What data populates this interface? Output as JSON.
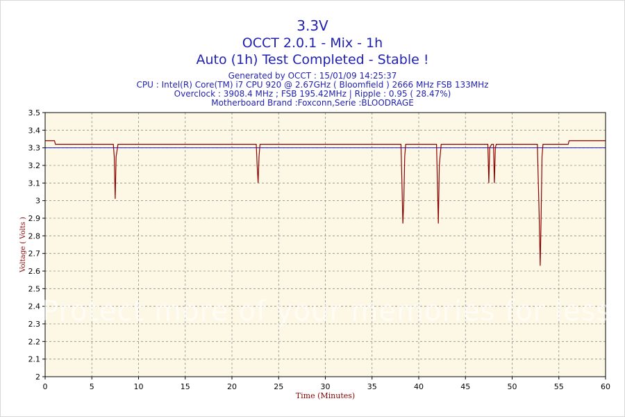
{
  "header": {
    "title": "3.3V",
    "subtitle": "OCCT 2.0.1 - Mix - 1h",
    "status": "Auto (1h) Test Completed - Stable !"
  },
  "info": {
    "generated": "Generated by OCCT : 15/01/09 14:25:37",
    "cpu": "CPU : Intel(R) Core(TM) i7 CPU 920 @ 2.67GHz ( Bloomfield ) 2666 MHz FSB 133MHz",
    "overclock": "Overclock : 3908.4 MHz ; FSB 195.42MHz | Ripple : 0.95 ( 28.47%)",
    "motherboard": "Motherboard Brand :Foxconn,Serie :BLOODRAGE"
  },
  "watermark": "Protect more of your memories for less!",
  "colors": {
    "plot_bg": "#fdf8e6",
    "series": "#8b0000",
    "reference": "#1515c8",
    "text": "#1f1fb0",
    "axis_title": "#8b0000"
  },
  "chart_data": {
    "type": "line",
    "title": "3.3V",
    "xlabel": "Time (Minutes)",
    "ylabel": "Voltage ( Volts )",
    "xlim": [
      0,
      60
    ],
    "ylim": [
      2,
      3.5
    ],
    "x_ticks": [
      0,
      5,
      10,
      15,
      20,
      25,
      30,
      35,
      40,
      45,
      50,
      55,
      60
    ],
    "y_ticks": [
      2,
      2.1,
      2.2,
      2.3,
      2.4,
      2.5,
      2.6,
      2.7,
      2.8,
      2.9,
      3,
      3.1,
      3.2,
      3.3,
      3.4,
      3.5
    ],
    "grid": true,
    "reference_line": 3.3,
    "series": [
      {
        "points": [
          [
            0,
            3.34
          ],
          [
            1.0,
            3.34
          ],
          [
            1.1,
            3.32
          ],
          [
            7.3,
            3.32
          ],
          [
            7.4,
            3.25
          ],
          [
            7.5,
            3.01
          ],
          [
            7.6,
            3.25
          ],
          [
            7.8,
            3.32
          ],
          [
            22.6,
            3.32
          ],
          [
            22.7,
            3.2
          ],
          [
            22.8,
            3.1
          ],
          [
            22.9,
            3.25
          ],
          [
            23.0,
            3.32
          ],
          [
            38.1,
            3.32
          ],
          [
            38.2,
            3.1
          ],
          [
            38.3,
            2.87
          ],
          [
            38.4,
            3.0
          ],
          [
            38.5,
            3.25
          ],
          [
            38.6,
            3.32
          ],
          [
            41.9,
            3.32
          ],
          [
            42.0,
            3.1
          ],
          [
            42.1,
            2.87
          ],
          [
            42.2,
            3.2
          ],
          [
            42.4,
            3.32
          ],
          [
            47.4,
            3.32
          ],
          [
            47.5,
            3.1
          ],
          [
            47.6,
            3.3
          ],
          [
            47.8,
            3.32
          ],
          [
            48.0,
            3.32
          ],
          [
            48.1,
            3.1
          ],
          [
            48.2,
            3.3
          ],
          [
            48.3,
            3.32
          ],
          [
            52.7,
            3.32
          ],
          [
            52.8,
            3.1
          ],
          [
            52.9,
            2.9
          ],
          [
            53.0,
            2.63
          ],
          [
            53.1,
            2.9
          ],
          [
            53.2,
            3.25
          ],
          [
            53.3,
            3.32
          ],
          [
            56.0,
            3.32
          ],
          [
            56.1,
            3.34
          ],
          [
            60,
            3.34
          ]
        ]
      }
    ]
  }
}
